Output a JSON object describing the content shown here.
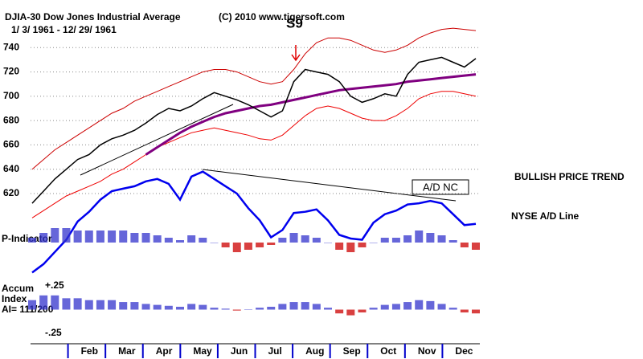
{
  "chart_data": {
    "type": "line",
    "title": "DJIA-30  Dow Jones Industrial Average",
    "copyright": "(C) 2010 www.tigersoft.com",
    "date_range": "1/ 3/ 1961 - 12/ 29/ 1961",
    "signal": "S9",
    "ad_note": "A/D NC",
    "trend_note": "BULLISH PRICE TREND",
    "categories": [
      "Feb",
      "Mar",
      "Apr",
      "May",
      "Jun",
      "Jul",
      "Aug",
      "Sep",
      "Oct",
      "Nov",
      "Dec"
    ],
    "ylim": [
      548,
      760
    ],
    "yticks": [
      620,
      640,
      660,
      680,
      700,
      720,
      740
    ],
    "grid": true,
    "price": {
      "color": "#000000",
      "values": [
        612,
        622,
        632,
        640,
        648,
        652,
        660,
        665,
        668,
        672,
        678,
        685,
        690,
        688,
        692,
        698,
        703,
        700,
        697,
        693,
        688,
        683,
        688,
        712,
        722,
        720,
        718,
        712,
        700,
        695,
        698,
        702,
        700,
        718,
        728,
        730,
        732,
        728,
        724,
        731
      ]
    },
    "upper_band": {
      "color": "#cc0000",
      "values": [
        640,
        648,
        656,
        662,
        668,
        674,
        680,
        686,
        690,
        696,
        700,
        704,
        708,
        712,
        716,
        720,
        722,
        722,
        720,
        716,
        712,
        710,
        712,
        722,
        735,
        744,
        748,
        748,
        746,
        742,
        738,
        736,
        738,
        742,
        748,
        752,
        755,
        756,
        755,
        754
      ]
    },
    "lower_band": {
      "color": "#ee0000",
      "values": [
        600,
        606,
        612,
        618,
        622,
        626,
        630,
        636,
        640,
        646,
        652,
        658,
        662,
        666,
        670,
        672,
        674,
        672,
        670,
        668,
        665,
        664,
        668,
        676,
        684,
        690,
        692,
        690,
        686,
        682,
        680,
        680,
        684,
        690,
        698,
        702,
        704,
        704,
        702,
        700
      ]
    },
    "moving_average": {
      "color": "#800080",
      "values": [
        null,
        null,
        null,
        null,
        null,
        null,
        null,
        null,
        null,
        null,
        652,
        658,
        664,
        670,
        675,
        679,
        683,
        686,
        688,
        690,
        692,
        693,
        695,
        697,
        699,
        701,
        703,
        705,
        706,
        707,
        708,
        709,
        710,
        712,
        713,
        714,
        715,
        716,
        717,
        718
      ]
    },
    "ad_line": {
      "name": "NYSE A/D Line",
      "color": "#0000ee",
      "values": [
        555,
        562,
        572,
        582,
        597,
        605,
        615,
        622,
        624,
        626,
        630,
        632,
        628,
        615,
        634,
        638,
        632,
        626,
        620,
        608,
        598,
        584,
        590,
        604,
        605,
        607,
        598,
        586,
        583,
        582,
        596,
        603,
        606,
        611,
        612,
        614,
        612,
        603,
        594,
        595
      ]
    },
    "p_indicator": {
      "label": "P-Indicator",
      "values": [
        0.2,
        0.4,
        0.6,
        0.6,
        0.5,
        0.5,
        0.5,
        0.5,
        0.5,
        0.4,
        0.4,
        0.3,
        0.2,
        0.1,
        0.3,
        0.2,
        0.0,
        -0.2,
        -0.4,
        -0.3,
        -0.2,
        -0.1,
        0.2,
        0.4,
        0.3,
        0.2,
        0.0,
        -0.3,
        -0.4,
        -0.2,
        0.0,
        0.2,
        0.2,
        0.3,
        0.5,
        0.4,
        0.3,
        0.1,
        -0.2,
        -0.3
      ]
    },
    "accum": {
      "label": [
        "Accum",
        "Index"
      ],
      "ai": "AI= 111/200",
      "ylim": [
        -0.25,
        0.25
      ],
      "yticks": [
        {
          "value": 0.25,
          "label": "+.25"
        },
        {
          "value": -0.25,
          "label": "-.25"
        }
      ],
      "values": [
        0.1,
        0.15,
        0.15,
        0.12,
        0.12,
        0.1,
        0.1,
        0.1,
        0.08,
        0.08,
        0.06,
        0.05,
        0.04,
        0.03,
        0.06,
        0.05,
        0.02,
        0.01,
        -0.01,
        0.0,
        0.02,
        0.03,
        0.06,
        0.08,
        0.08,
        0.06,
        0.02,
        -0.04,
        -0.06,
        -0.03,
        0.02,
        0.05,
        0.06,
        0.08,
        0.1,
        0.09,
        0.06,
        0.02,
        -0.03,
        -0.04
      ]
    }
  }
}
